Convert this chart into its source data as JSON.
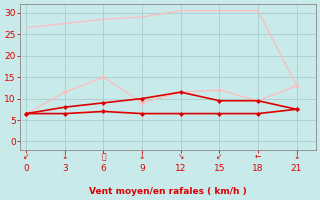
{
  "x": [
    0,
    3,
    6,
    9,
    12,
    15,
    18,
    21
  ],
  "line1": [
    26.5,
    27.5,
    28.5,
    29.0,
    30.5,
    30.5,
    30.5,
    13.0
  ],
  "line2_vals": [
    6.5,
    11.5,
    15.0,
    9.0,
    11.5,
    12.0,
    9.5,
    13.0
  ],
  "line3": [
    6.5,
    8.0,
    9.0,
    10.0,
    11.5,
    9.5,
    9.5,
    7.5
  ],
  "line4": [
    6.5,
    6.5,
    7.0,
    6.5,
    6.5,
    6.5,
    6.5,
    7.5
  ],
  "color1": "#ffbbbb",
  "color2": "#ffbbbb",
  "color3": "#dd0000",
  "bg_color": "#c8eaea",
  "grid_color": "#aacccc",
  "axis_color": "#dd0000",
  "xlabel": "Vent moyen/en rafales ( km/h )",
  "ylim": [
    -2,
    32
  ],
  "xlim": [
    -0.5,
    22.5
  ],
  "yticks": [
    0,
    5,
    10,
    15,
    20,
    25,
    30
  ],
  "xticks": [
    0,
    3,
    6,
    9,
    12,
    15,
    18,
    21
  ],
  "wind_dirs": [
    "↙",
    "↓",
    "⤷",
    "↓",
    "↘",
    "↙",
    "←",
    "↓"
  ],
  "wind_dirs_x": [
    0,
    3,
    6,
    9,
    12,
    15,
    18,
    21
  ]
}
